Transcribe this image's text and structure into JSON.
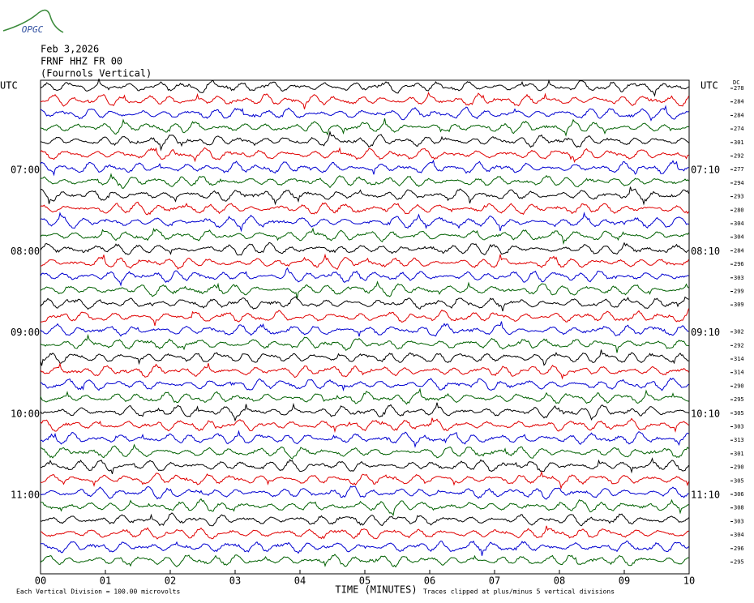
{
  "chart_data": {
    "type": "helicorder",
    "logo": "OPGC",
    "date": "Feb 3,2026",
    "station": "FRNF HHZ FR 00",
    "location": "(Fournols Vertical)",
    "left_axis_title": "UTC",
    "right_axis_title": "UTC",
    "offset_title": "DC",
    "colors": [
      "#000000",
      "#e00000",
      "#0000d0",
      "#006000"
    ],
    "rows": [
      {
        "left": null,
        "right": null,
        "value": 278
      },
      {
        "left": null,
        "right": null,
        "value": 284
      },
      {
        "left": null,
        "right": null,
        "value": 284
      },
      {
        "left": null,
        "right": null,
        "value": 274
      },
      {
        "left": null,
        "right": null,
        "value": 301
      },
      {
        "left": null,
        "right": null,
        "value": 292
      },
      {
        "left": "07:00",
        "right": "07:10",
        "value": 277
      },
      {
        "left": null,
        "right": null,
        "value": 294
      },
      {
        "left": null,
        "right": null,
        "value": 293
      },
      {
        "left": null,
        "right": null,
        "value": 280
      },
      {
        "left": null,
        "right": null,
        "value": 304
      },
      {
        "left": null,
        "right": null,
        "value": 304
      },
      {
        "left": "08:00",
        "right": "08:10",
        "value": 284
      },
      {
        "left": null,
        "right": null,
        "value": 296
      },
      {
        "left": null,
        "right": null,
        "value": 303
      },
      {
        "left": null,
        "right": null,
        "value": 299
      },
      {
        "left": null,
        "right": null,
        "value": 309
      },
      {
        "left": null,
        "right": null,
        "value": null
      },
      {
        "left": "09:00",
        "right": "09:10",
        "value": 302
      },
      {
        "left": null,
        "right": null,
        "value": 292
      },
      {
        "left": null,
        "right": null,
        "value": 314
      },
      {
        "left": null,
        "right": null,
        "value": 314
      },
      {
        "left": null,
        "right": null,
        "value": 290
      },
      {
        "left": null,
        "right": null,
        "value": 295
      },
      {
        "left": "10:00",
        "right": "10:10",
        "value": 305
      },
      {
        "left": null,
        "right": null,
        "value": 303
      },
      {
        "left": null,
        "right": null,
        "value": 313
      },
      {
        "left": null,
        "right": null,
        "value": 301
      },
      {
        "left": null,
        "right": null,
        "value": 290
      },
      {
        "left": null,
        "right": null,
        "value": 305
      },
      {
        "left": "11:00",
        "right": "11:10",
        "value": 306
      },
      {
        "left": null,
        "right": null,
        "value": 308
      },
      {
        "left": null,
        "right": null,
        "value": 303
      },
      {
        "left": null,
        "right": null,
        "value": 304
      },
      {
        "left": null,
        "right": null,
        "value": 296
      },
      {
        "left": null,
        "right": null,
        "value": 295
      }
    ],
    "xlim": [
      0,
      10
    ],
    "xticks": [
      {
        "value": 0,
        "label": "00"
      },
      {
        "value": 1,
        "label": "01"
      },
      {
        "value": 2,
        "label": "02"
      },
      {
        "value": 3,
        "label": "03"
      },
      {
        "value": 4,
        "label": "04"
      },
      {
        "value": 5,
        "label": "05"
      },
      {
        "value": 6,
        "label": "06"
      },
      {
        "value": 7,
        "label": "07"
      },
      {
        "value": 8,
        "label": "08"
      },
      {
        "value": 9,
        "label": "09"
      },
      {
        "value": 10,
        "label": "10"
      }
    ],
    "x_label": "TIME (MINUTES)",
    "scale_note": "Each Vertical Division =  100.00 microvolts",
    "clip_note": "Traces clipped at plus/minus 5 vertical divisions"
  }
}
